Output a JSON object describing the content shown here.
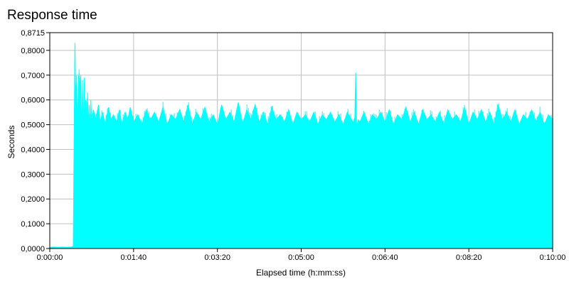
{
  "chart_data": {
    "type": "area",
    "title": "Response time",
    "xlabel": "Elapsed time (h:mm:ss)",
    "ylabel": "Seconds",
    "x_unit": "seconds",
    "xlim": [
      0,
      600
    ],
    "ylim": [
      0,
      0.8715
    ],
    "x_ticks": [
      0,
      100,
      200,
      300,
      400,
      500,
      600
    ],
    "x_tick_labels": [
      "0:00:00",
      "0:01:40",
      "0:03:20",
      "0:05:00",
      "0:06:40",
      "0:08:20",
      "0:10:00"
    ],
    "y_ticks": [
      0,
      0.1,
      0.2,
      0.3,
      0.4,
      0.5,
      0.6,
      0.7,
      0.8,
      0.8715
    ],
    "y_tick_labels": [
      "0,0000",
      "0,1000",
      "0,2000",
      "0,3000",
      "0,4000",
      "0,5000",
      "0,6000",
      "0,7000",
      "0,8000",
      "0,8715"
    ],
    "grid": true,
    "colors": {
      "series": "#00ffff",
      "grid": "#c0c0c0",
      "axis": "#000000",
      "background": "#ffffff"
    },
    "series": [
      {
        "x": [
          0,
          5,
          10,
          15,
          20,
          25,
          28,
          29,
          30,
          31,
          32,
          33,
          34,
          35,
          36,
          37,
          38,
          39,
          40,
          41,
          42,
          43,
          44,
          45,
          46,
          47,
          48,
          49,
          50,
          52,
          55,
          58,
          60,
          63,
          66,
          70,
          73,
          76,
          80,
          83,
          86,
          90,
          93,
          96,
          100,
          105,
          110,
          115,
          120,
          125,
          130,
          135,
          140,
          145,
          150,
          155,
          160,
          165,
          170,
          175,
          180,
          185,
          190,
          195,
          200,
          205,
          210,
          215,
          220,
          225,
          230,
          235,
          240,
          245,
          250,
          255,
          260,
          265,
          270,
          275,
          280,
          285,
          290,
          295,
          300,
          305,
          310,
          315,
          320,
          325,
          330,
          335,
          340,
          345,
          350,
          355,
          360,
          362,
          364,
          365,
          366,
          368,
          370,
          375,
          380,
          385,
          390,
          395,
          400,
          405,
          410,
          415,
          420,
          425,
          430,
          435,
          440,
          445,
          450,
          455,
          460,
          465,
          470,
          475,
          480,
          485,
          490,
          495,
          500,
          505,
          510,
          515,
          520,
          525,
          530,
          535,
          540,
          545,
          550,
          555,
          560,
          565,
          570,
          575,
          580,
          585,
          590,
          595,
          600
        ],
        "values": [
          0.005,
          0.006,
          0.005,
          0.006,
          0.005,
          0.006,
          0.008,
          0.44,
          0.83,
          0.58,
          0.7,
          0.47,
          0.68,
          0.71,
          0.64,
          0.7,
          0.45,
          0.68,
          0.42,
          0.69,
          0.5,
          0.6,
          0.48,
          0.63,
          0.49,
          0.58,
          0.47,
          0.6,
          0.5,
          0.56,
          0.52,
          0.58,
          0.51,
          0.55,
          0.5,
          0.57,
          0.52,
          0.54,
          0.51,
          0.56,
          0.5,
          0.55,
          0.52,
          0.57,
          0.51,
          0.54,
          0.5,
          0.56,
          0.52,
          0.55,
          0.51,
          0.57,
          0.5,
          0.54,
          0.52,
          0.56,
          0.51,
          0.58,
          0.5,
          0.55,
          0.52,
          0.57,
          0.51,
          0.54,
          0.5,
          0.58,
          0.52,
          0.55,
          0.51,
          0.59,
          0.5,
          0.56,
          0.52,
          0.58,
          0.51,
          0.55,
          0.5,
          0.57,
          0.52,
          0.54,
          0.51,
          0.56,
          0.5,
          0.55,
          0.52,
          0.54,
          0.51,
          0.55,
          0.5,
          0.54,
          0.52,
          0.55,
          0.51,
          0.54,
          0.5,
          0.55,
          0.52,
          0.51,
          0.53,
          0.71,
          0.49,
          0.52,
          0.51,
          0.55,
          0.5,
          0.54,
          0.52,
          0.55,
          0.51,
          0.56,
          0.5,
          0.54,
          0.52,
          0.57,
          0.51,
          0.55,
          0.5,
          0.56,
          0.52,
          0.54,
          0.51,
          0.55,
          0.5,
          0.56,
          0.52,
          0.54,
          0.51,
          0.57,
          0.5,
          0.55,
          0.52,
          0.56,
          0.51,
          0.55,
          0.5,
          0.58,
          0.52,
          0.55,
          0.51,
          0.56,
          0.5,
          0.54,
          0.52,
          0.56,
          0.51,
          0.55,
          0.5,
          0.54,
          0.52
        ]
      }
    ]
  }
}
